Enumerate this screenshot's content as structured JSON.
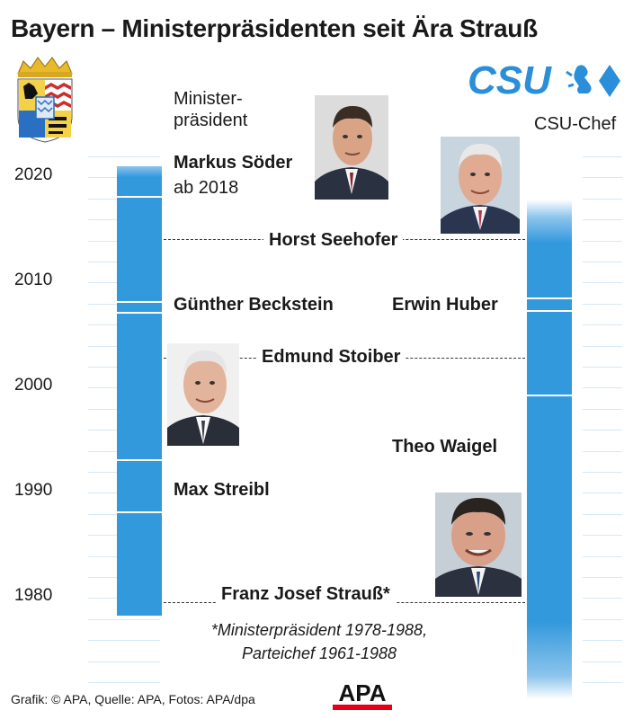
{
  "title": "Bayern – Ministerpräsidenten seit Ära Strauß",
  "left_header": "Minister-\npräsident",
  "right_header": "CSU-Chef",
  "csu_logo_text": "CSU",
  "years": [
    "2020",
    "2010",
    "2000",
    "1990",
    "1980"
  ],
  "persons": {
    "soeder": {
      "name": "Markus Söder",
      "note": "ab 2018"
    },
    "seehofer": {
      "name": "Horst Seehofer"
    },
    "beckstein": {
      "name": "Günther Beckstein"
    },
    "huber": {
      "name": "Erwin Huber"
    },
    "stoiber": {
      "name": "Edmund Stoiber"
    },
    "waigel": {
      "name": "Theo Waigel"
    },
    "streibl": {
      "name": "Max Streibl"
    },
    "strauss": {
      "name": "Franz Josef Strauß*"
    }
  },
  "footnote": "*Ministerpräsident 1978-1988,\nParteichef 1961-1988",
  "credits": "Grafik: © APA, Quelle: APA, Fotos: APA/dpa",
  "apa_logo_text": "APA",
  "colors": {
    "bar": "#3399dd",
    "tick": "#d6e8f6",
    "csu": "#2a8fd8",
    "apa_red": "#e3001b"
  }
}
